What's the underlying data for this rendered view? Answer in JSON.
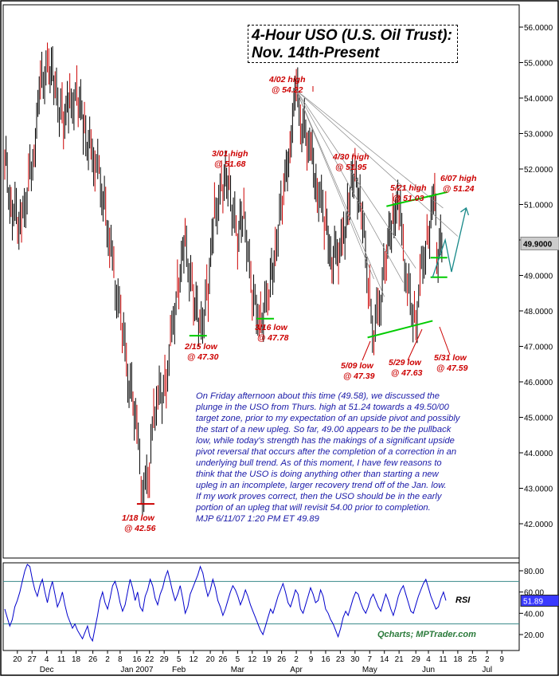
{
  "title": {
    "line1": "4-Hour USO (U.S. Oil Trust):",
    "line2": "Nov. 14th-Present"
  },
  "commentary": [
    "On Friday afternoon about this time (49.58), we discussed the",
    "plunge in the USO from Thurs. high at 51.24 towards a 49.50/00",
    "target zone, prior to my expectation of an upside pivot and possibly",
    "the start of a new upleg. So far, 49.00 appears to be the pullback",
    "low, while today's strength has the makings of a significant upside",
    "pivot reversal that occurs after the completion of a correction in an",
    "underlying bull trend. As of this moment, I have few reasons to",
    "think that the USO is doing anything other than starting a new",
    "upleg in an incomplete, larger recovery trend off of the Jan. low.",
    "If my work proves correct, then the USO should be in the early",
    "portion of an upleg that will revisit 54.00 prior to completion.",
    "MJP  6/11/07  1:20 PM ET  49.89"
  ],
  "watermark": "Qcharts; MPTrader.com",
  "colors": {
    "price": "#000000",
    "annotation": "#cc0000",
    "support": "#00cc00",
    "projection": "#1a8a8a",
    "rsi": "#0000cc",
    "commentary": "#1a1aa8",
    "last_price_box": "#cccccc"
  },
  "chart_data": [
    {
      "type": "line",
      "subtype": "ohlc-bars",
      "title": "4-Hour USO (U.S. Oil Trust): Nov. 14th-Present",
      "ylim": [
        41.3,
        56.4
      ],
      "y_ticks": [
        "42.0000",
        "43.0000",
        "44.0000",
        "45.0000",
        "46.0000",
        "47.0000",
        "48.0000",
        "49.0000",
        "50.0000",
        "51.0000",
        "52.0000",
        "53.0000",
        "54.0000",
        "55.0000",
        "56.0000"
      ],
      "last_price": "49.9000",
      "x_tick_labels": [
        "20",
        "27",
        "4",
        "11",
        "18",
        "26",
        "2",
        "8",
        "16",
        "22",
        "29",
        "5",
        "12",
        "20",
        "26",
        "5",
        "12",
        "19",
        "26",
        "2",
        "9",
        "16",
        "23",
        "30",
        "7",
        "14",
        "21",
        "29",
        "4",
        "11",
        "18",
        "25",
        "2",
        "9"
      ],
      "month_labels": [
        "Dec",
        "Jan 2007",
        "Feb",
        "Mar",
        "Apr",
        "May",
        "Jun",
        "Jul"
      ],
      "series": [
        {
          "x": [
            "2006-11-14",
            "2006-11-17",
            "2006-11-22",
            "2006-11-28",
            "2006-12-01",
            "2006-12-05",
            "2006-12-08",
            "2006-12-12",
            "2006-12-15",
            "2006-12-19",
            "2006-12-22",
            "2006-12-27",
            "2006-12-29",
            "2007-01-03",
            "2007-01-05",
            "2007-01-09",
            "2007-01-11",
            "2007-01-16",
            "2007-01-18",
            "2007-01-22",
            "2007-01-24",
            "2007-01-26",
            "2007-01-30",
            "2007-02-01",
            "2007-02-05",
            "2007-02-08",
            "2007-02-12",
            "2007-02-15",
            "2007-02-19",
            "2007-02-22",
            "2007-02-26",
            "2007-03-01",
            "2007-03-05",
            "2007-03-08",
            "2007-03-12",
            "2007-03-16",
            "2007-03-20",
            "2007-03-23",
            "2007-03-27",
            "2007-03-30",
            "2007-04-02",
            "2007-04-04",
            "2007-04-09",
            "2007-04-12",
            "2007-04-16",
            "2007-04-19",
            "2007-04-24",
            "2007-04-27",
            "2007-04-30",
            "2007-05-03",
            "2007-05-07",
            "2007-05-09",
            "2007-05-11",
            "2007-05-15",
            "2007-05-18",
            "2007-05-21",
            "2007-05-23",
            "2007-05-25",
            "2007-05-29",
            "2007-05-31",
            "2007-06-04",
            "2007-06-07",
            "2007-06-08",
            "2007-06-11"
          ],
          "values": [
            52.3,
            51.0,
            50.4,
            52.6,
            54.3,
            55.1,
            54.2,
            53.4,
            53.8,
            54.1,
            53.0,
            52.3,
            51.8,
            50.1,
            49.0,
            47.6,
            46.4,
            44.9,
            43.0,
            43.2,
            45.3,
            45.5,
            46.0,
            47.1,
            48.9,
            49.8,
            48.5,
            47.4,
            48.6,
            50.7,
            51.6,
            51.6,
            49.9,
            50.9,
            48.3,
            47.8,
            48.4,
            49.8,
            51.3,
            52.8,
            54.2,
            53.4,
            52.5,
            51.5,
            50.5,
            49.5,
            49.8,
            51.1,
            51.9,
            50.9,
            48.4,
            47.4,
            47.9,
            49.5,
            50.8,
            50.9,
            49.8,
            48.7,
            47.6,
            48.9,
            50.2,
            51.2,
            49.6,
            49.9
          ]
        }
      ],
      "annotations": [
        {
          "line1": "4/02 high",
          "line2": "@ 54.22"
        },
        {
          "line1": "3/01 high",
          "line2": "@ 51.68"
        },
        {
          "line1": "4/30 high",
          "line2": "@ 51.95"
        },
        {
          "line1": "5/21 high",
          "line2": "@ 51.03"
        },
        {
          "line1": "6/07 high",
          "line2": "@ 51.24"
        },
        {
          "line1": "2/15 low",
          "line2": "@ 47.30"
        },
        {
          "line1": "3/16 low",
          "line2": "@ 47.78"
        },
        {
          "line1": "5/09 low",
          "line2": "@ 47.39"
        },
        {
          "line1": "5/29 low",
          "line2": "@ 47.63"
        },
        {
          "line1": "5/31 low",
          "line2": "@ 47.59"
        },
        {
          "line1": "1/18 low",
          "line2": "@ 42.56"
        }
      ]
    },
    {
      "type": "line",
      "title": "RSI",
      "ylim": [
        10,
        90
      ],
      "y_ticks": [
        "20.00",
        "40.00",
        "60.00",
        "80.00"
      ],
      "reference_lines": [
        30,
        70
      ],
      "last_value": "51.89",
      "series": [
        {
          "name": "RSI",
          "values": [
            44,
            36,
            28,
            34,
            46,
            52,
            60,
            70,
            80,
            86,
            84,
            72,
            62,
            56,
            66,
            72,
            60,
            50,
            62,
            70,
            58,
            46,
            52,
            60,
            48,
            38,
            32,
            26,
            30,
            24,
            20,
            16,
            22,
            28,
            18,
            14,
            26,
            38,
            52,
            60,
            50,
            44,
            54,
            66,
            70,
            62,
            50,
            42,
            48,
            60,
            72,
            64,
            52,
            60,
            46,
            42,
            56,
            62,
            72,
            66,
            54,
            48,
            58,
            64,
            74,
            80,
            70,
            60,
            52,
            58,
            66,
            54,
            40,
            46,
            58,
            64,
            70,
            76,
            84,
            78,
            66,
            56,
            62,
            72,
            64,
            52,
            46,
            38,
            44,
            52,
            60,
            66,
            62,
            56,
            48,
            54,
            62,
            56,
            48,
            42,
            36,
            30,
            24,
            20,
            28,
            36,
            44,
            40,
            48,
            56,
            62,
            68,
            60,
            50,
            46,
            54,
            62,
            58,
            44,
            40,
            48,
            56,
            64,
            58,
            50,
            52,
            62,
            56,
            44,
            40,
            34,
            30,
            24,
            18,
            26,
            36,
            42,
            38,
            46,
            54,
            60,
            58,
            50,
            44,
            40,
            46,
            54,
            58,
            52,
            46,
            42,
            50,
            58,
            52,
            44,
            38,
            46,
            56,
            62,
            66,
            58,
            50,
            42,
            40,
            48,
            56,
            62,
            68,
            72,
            64,
            56,
            50,
            44,
            46,
            54,
            60,
            52
          ]
        }
      ]
    }
  ]
}
